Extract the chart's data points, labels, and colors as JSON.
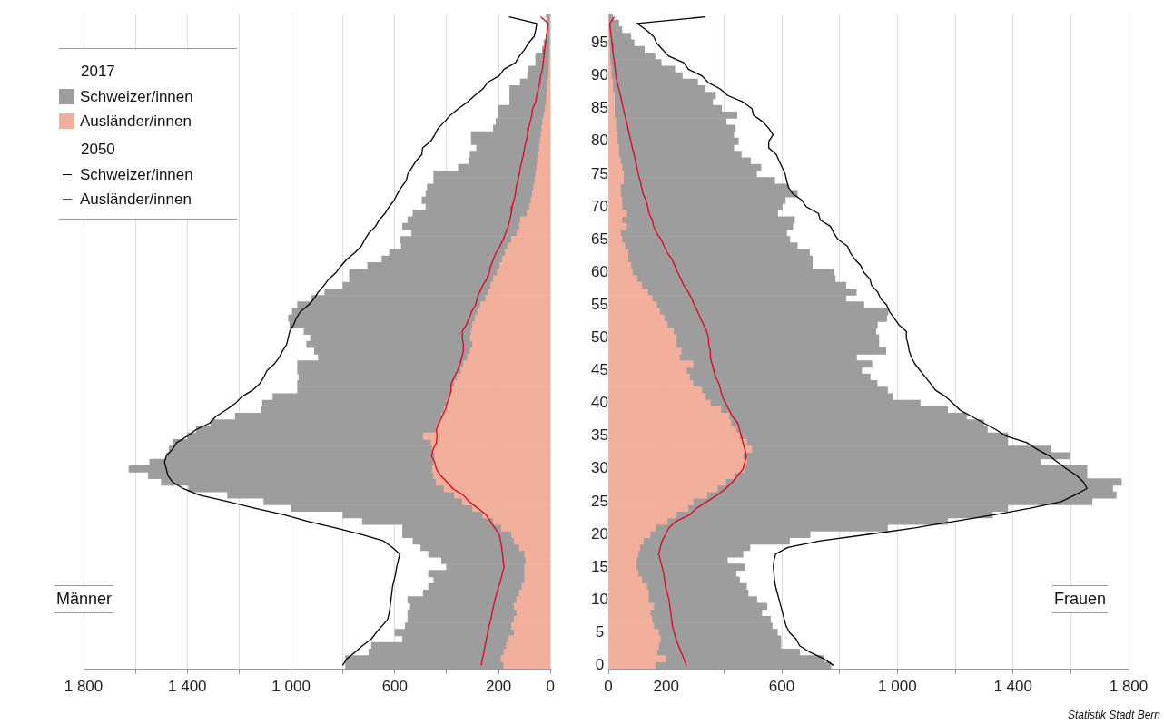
{
  "chart_data": [
    {
      "type": "bar",
      "orientation": "horizontal",
      "stacked": true,
      "legend": "top left",
      "grid": "x",
      "tick_labels": "x",
      "annotations": [
        "2017",
        "2050",
        "Männer"
      ],
      "categories": [
        null,
        null,
        null,
        null,
        "95",
        null,
        null,
        null,
        null,
        "90",
        null,
        null,
        null,
        null,
        "85",
        null,
        null,
        null,
        null,
        "80",
        null,
        null,
        null,
        null,
        "75",
        null,
        null,
        null,
        null,
        "70",
        null,
        null,
        null,
        null,
        "65",
        null,
        null,
        null,
        null,
        "60",
        null,
        null,
        null,
        null,
        "55",
        null,
        null,
        null,
        null,
        "50",
        null,
        null,
        null,
        null,
        "45",
        null,
        null,
        null,
        null,
        "40",
        null,
        null,
        null,
        null,
        "35",
        null,
        null,
        null,
        null,
        "30",
        null,
        null,
        null,
        null,
        "25",
        null,
        null,
        null,
        null,
        "20",
        null,
        null,
        null,
        null,
        "15",
        null,
        null,
        null,
        null,
        "10",
        null,
        null,
        null,
        null,
        "5",
        null,
        null,
        null,
        null,
        "0"
      ],
      "xlim": [
        1800,
        0
      ],
      "xticks": [
        {
          "value": 1800,
          "label": "1 800"
        },
        {
          "value": 1600,
          "label": null
        },
        {
          "value": 1400,
          "label": "1 400"
        },
        {
          "value": 1200,
          "label": null
        },
        {
          "value": 1000,
          "label": "1 000"
        },
        {
          "value": 800,
          "label": null
        },
        600,
        {
          "value": 400,
          "label": null
        },
        200,
        0
      ],
      "series": [
        {
          "name": "Ausländer/innen",
          "color": "#f2b09c",
          "values": [
            1,
            1,
            1,
            2,
            2,
            3,
            4,
            5,
            6,
            8,
            10,
            12,
            14,
            16,
            20,
            25,
            30,
            33,
            36,
            40,
            43,
            47,
            50,
            53,
            57,
            60,
            65,
            70,
            75,
            80,
            90,
            116,
            120,
            130,
            150,
            165,
            175,
            185,
            195,
            205,
            220,
            230,
            240,
            250,
            270,
            280,
            290,
            300,
            305,
            310,
            300,
            310,
            320,
            335,
            345,
            360,
            370,
            380,
            390,
            400,
            410,
            420,
            430,
            440,
            490,
            460,
            455,
            445,
            450,
            455,
            450,
            440,
            410,
            370,
            340,
            300,
            260,
            220,
            190,
            150,
            140,
            120,
            100,
            95,
            100,
            100,
            100,
            110,
            120,
            130,
            140,
            130,
            140,
            150,
            140,
            160,
            170,
            180,
            190,
            180
          ]
        },
        {
          "name": "Schweizer/innen",
          "color": "#9d9d9d",
          "values": [
            15,
            10,
            11,
            14,
            23,
            28,
            53,
            52,
            79,
            80,
            106,
            145,
            143,
            141,
            180,
            175,
            180,
            187,
            269,
            265,
            242,
            263,
            265,
            302,
            393,
            390,
            410,
            410,
            420,
            400,
            440,
            434,
            450,
            405,
            430,
            410,
            445,
            465,
            510,
            570,
            555,
            570,
            630,
            670,
            705,
            715,
            720,
            705,
            645,
            615,
            640,
            600,
            575,
            640,
            630,
            610,
            605,
            595,
            680,
            710,
            705,
            795,
            880,
            925,
            910,
            995,
            1015,
            1035,
            1095,
            1170,
            1100,
            1060,
            985,
            875,
            765,
            700,
            540,
            505,
            380,
            420,
            390,
            380,
            370,
            325,
            300,
            370,
            350,
            360,
            370,
            420,
            400,
            420,
            410,
            410,
            460,
            410,
            520,
            520,
            600,
            610
          ]
        },
        {
          "name": "Ausländer/innen",
          "type": "line",
          "color": "#e2001a",
          "values": [
            38,
            9,
            12,
            16,
            19,
            22,
            25,
            28,
            31,
            38,
            41,
            47,
            53,
            57,
            69,
            72,
            78,
            85,
            88,
            94,
            100,
            104,
            110,
            116,
            120,
            126,
            132,
            135,
            141,
            148,
            151,
            157,
            163,
            173,
            182,
            195,
            210,
            220,
            230,
            236,
            245,
            261,
            273,
            283,
            289,
            304,
            314,
            324,
            340,
            340,
            336,
            336,
            342,
            349,
            358,
            371,
            383,
            383,
            389,
            399,
            405,
            418,
            430,
            440,
            437,
            440,
            452,
            459,
            446,
            440,
            424,
            399,
            377,
            336,
            314,
            280,
            248,
            232,
            215,
            198,
            192,
            188,
            185,
            182,
            179,
            186,
            192,
            200,
            207,
            214,
            220,
            225,
            230,
            237,
            242,
            247,
            252,
            257,
            262,
            267
          ]
        },
        {
          "name": "Schweizer/innen",
          "type": "line",
          "color": "#000000",
          "values": [
            160,
            53,
            57,
            63,
            85,
            100,
            120,
            135,
            179,
            198,
            242,
            261,
            292,
            320,
            355,
            386,
            408,
            433,
            446,
            462,
            493,
            496,
            518,
            534,
            550,
            556,
            575,
            590,
            603,
            622,
            638,
            660,
            675,
            700,
            716,
            729,
            754,
            785,
            807,
            826,
            854,
            873,
            895,
            911,
            933,
            964,
            980,
            990,
            1005,
            1011,
            1017,
            1033,
            1046,
            1065,
            1093,
            1105,
            1121,
            1149,
            1190,
            1215,
            1250,
            1290,
            1313,
            1366,
            1400,
            1441,
            1457,
            1481,
            1488,
            1481,
            1475,
            1457,
            1416,
            1354,
            1243,
            1140,
            1027,
            936,
            829,
            732,
            644,
            609,
            581,
            587,
            593,
            597,
            603,
            609,
            612,
            615,
            618,
            622,
            628,
            650,
            672,
            691,
            725,
            754,
            785,
            801
          ]
        }
      ]
    },
    {
      "type": "bar",
      "orientation": "horizontal",
      "stacked": true,
      "grid": "x",
      "annotations": [
        "Frauen",
        "Statistik Stadt Bern"
      ],
      "categories": [
        null,
        null,
        null,
        null,
        "95",
        null,
        null,
        null,
        null,
        "90",
        null,
        null,
        null,
        null,
        "85",
        null,
        null,
        null,
        null,
        "80",
        null,
        null,
        null,
        null,
        "75",
        null,
        null,
        null,
        null,
        "70",
        null,
        null,
        null,
        null,
        "65",
        null,
        null,
        null,
        null,
        "60",
        null,
        null,
        null,
        null,
        "55",
        null,
        null,
        null,
        null,
        "50",
        null,
        null,
        null,
        null,
        "45",
        null,
        null,
        null,
        null,
        "40",
        null,
        null,
        null,
        null,
        "35",
        null,
        null,
        null,
        null,
        "30",
        null,
        null,
        null,
        null,
        "25",
        null,
        null,
        null,
        null,
        "20",
        null,
        null,
        null,
        null,
        "15",
        null,
        null,
        null,
        null,
        "10",
        null,
        null,
        null,
        null,
        "5",
        null,
        null,
        null,
        null,
        "0"
      ],
      "xlim": [
        0,
        1800
      ],
      "xticks": [
        0,
        200,
        {
          "value": 400,
          "label": null
        },
        600,
        {
          "value": 800,
          "label": null
        },
        {
          "value": 1000,
          "label": "1 000"
        },
        {
          "value": 1200,
          "label": null
        },
        {
          "value": 1400,
          "label": "1 400"
        },
        {
          "value": 1600,
          "label": null
        },
        {
          "value": 1800,
          "label": "1 800"
        }
      ],
      "series": [
        {
          "color": "#f2b09c",
          "values": [
            1,
            2,
            2,
            3,
            3,
            5,
            5,
            7,
            10,
            10,
            15,
            15,
            21,
            21,
            21,
            21,
            26,
            26,
            31,
            31,
            36,
            36,
            42,
            47,
            52,
            52,
            42,
            42,
            47,
            47,
            63,
            47,
            63,
            42,
            47,
            57,
            68,
            68,
            78,
            83,
            99,
            115,
            136,
            152,
            167,
            178,
            193,
            204,
            225,
            234,
            234,
            252,
            246,
            293,
            270,
            281,
            293,
            323,
            335,
            353,
            389,
            418,
            424,
            442,
            454,
            478,
            496,
            466,
            478,
            472,
            436,
            406,
            377,
            341,
            293,
            276,
            234,
            204,
            163,
            145,
            121,
            109,
            103,
            97,
            97,
            103,
            115,
            133,
            139,
            139,
            157,
            145,
            151,
            157,
            174,
            180,
            174,
            168,
            198,
            163
          ]
        },
        {
          "color": "#9d9d9d",
          "values": [
            14,
            34,
            45,
            75,
            86,
            120,
            157,
            176,
            220,
            246,
            294,
            320,
            350,
            340,
            371,
            424,
            382,
            413,
            403,
            419,
            398,
            424,
            450,
            481,
            461,
            524,
            581,
            612,
            565,
            555,
            523,
            597,
            575,
            575,
            581,
            597,
            628,
            638,
            628,
            697,
            686,
            707,
            722,
            670,
            717,
            790,
            770,
            727,
            701,
            702,
            702,
            708,
            613,
            619,
            607,
            625,
            637,
            643,
            649,
            726,
            785,
            821,
            875,
            869,
            928,
            904,
            1035,
            1130,
            1017,
            1184,
            1220,
            1369,
            1368,
            1416,
            1381,
            1106,
            1095,
            970,
            803,
            553,
            506,
            381,
            363,
            315,
            375,
            339,
            339,
            345,
            345,
            375,
            392,
            386,
            410,
            410,
            411,
            417,
            423,
            494,
            548,
            607
          ]
        },
        {
          "type": "line",
          "color": "#e2001a",
          "values": [
            21,
            5,
            7,
            10,
            13,
            15,
            18,
            21,
            24,
            26,
            31,
            36,
            42,
            47,
            52,
            57,
            63,
            68,
            73,
            78,
            83,
            89,
            94,
            99,
            104,
            110,
            115,
            120,
            131,
            136,
            141,
            152,
            157,
            167,
            183,
            193,
            204,
            220,
            230,
            240,
            251,
            261,
            277,
            288,
            298,
            309,
            319,
            330,
            340,
            347,
            347,
            353,
            353,
            359,
            365,
            371,
            383,
            389,
            395,
            406,
            418,
            430,
            448,
            454,
            460,
            466,
            472,
            478,
            472,
            466,
            448,
            430,
            406,
            377,
            341,
            305,
            282,
            234,
            210,
            198,
            186,
            180,
            174,
            180,
            186,
            192,
            195,
            198,
            204,
            210,
            213,
            216,
            219,
            222,
            228,
            234,
            243,
            252,
            262,
            270
          ]
        },
        {
          "type": "line",
          "color": "#000000",
          "values": [
            335,
            99,
            131,
            157,
            167,
            188,
            209,
            261,
            277,
            324,
            345,
            387,
            413,
            466,
            497,
            502,
            534,
            555,
            570,
            555,
            555,
            581,
            591,
            602,
            612,
            617,
            623,
            638,
            670,
            685,
            727,
            733,
            769,
            780,
            795,
            827,
            837,
            853,
            874,
            884,
            905,
            911,
            932,
            942,
            963,
            973,
            989,
            1005,
            1031,
            1031,
            1037,
            1041,
            1049,
            1061,
            1079,
            1097,
            1115,
            1132,
            1168,
            1192,
            1216,
            1257,
            1299,
            1341,
            1376,
            1448,
            1483,
            1525,
            1555,
            1585,
            1620,
            1644,
            1656,
            1614,
            1567,
            1460,
            1335,
            1198,
            1061,
            900,
            734,
            621,
            579,
            573,
            571,
            573,
            575,
            579,
            585,
            591,
            597,
            603,
            609,
            615,
            627,
            650,
            662,
            698,
            746,
            779
          ]
        }
      ]
    }
  ]
}
